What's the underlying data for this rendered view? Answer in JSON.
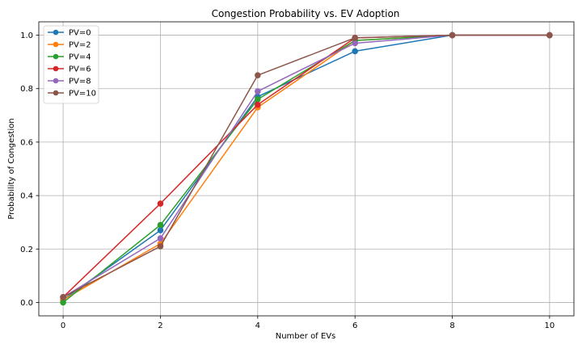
{
  "chart_data": {
    "type": "line",
    "title": "Congestion Probability vs. EV Adoption",
    "xlabel": "Number of EVs",
    "ylabel": "Probability of Congestion",
    "x": [
      0,
      2,
      4,
      6,
      8,
      10
    ],
    "xlim": [
      -0.5,
      10.5
    ],
    "ylim": [
      -0.05,
      1.05
    ],
    "xticks": [
      "0",
      "2",
      "4",
      "6",
      "8",
      "10"
    ],
    "yticks": [
      "0.0",
      "0.2",
      "0.4",
      "0.6",
      "0.8",
      "1.0"
    ],
    "grid": true,
    "legend_position": "top-left",
    "series": [
      {
        "name": "PV=0",
        "color": "#1f77b4",
        "values": [
          0.01,
          0.27,
          0.77,
          0.94,
          1.0,
          1.0
        ]
      },
      {
        "name": "PV=2",
        "color": "#ff7f0e",
        "values": [
          0.01,
          0.22,
          0.73,
          0.98,
          1.0,
          1.0
        ]
      },
      {
        "name": "PV=4",
        "color": "#2ca02c",
        "values": [
          0.0,
          0.29,
          0.76,
          0.98,
          1.0,
          1.0
        ]
      },
      {
        "name": "PV=6",
        "color": "#d62728",
        "values": [
          0.02,
          0.37,
          0.74,
          0.99,
          1.0,
          1.0
        ]
      },
      {
        "name": "PV=8",
        "color": "#9467bd",
        "values": [
          0.02,
          0.24,
          0.79,
          0.97,
          1.0,
          1.0
        ]
      },
      {
        "name": "PV=10",
        "color": "#8c564b",
        "values": [
          0.02,
          0.21,
          0.85,
          0.99,
          1.0,
          1.0
        ]
      }
    ]
  }
}
